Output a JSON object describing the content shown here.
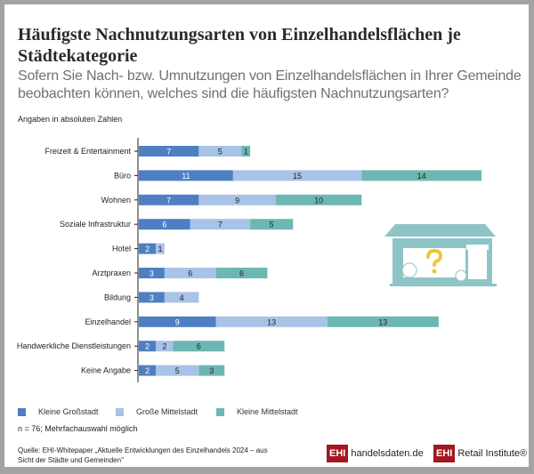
{
  "title": "Häufigste Nachnutzungsarten von Einzelhandelsflächen je Städtekategorie",
  "subtitle": "Sofern Sie Nach- bzw. Umnutzungen von Einzelhandelsflächen in Ihrer Gemeinde beobachten können, welches sind die häufigsten Nachnutzungsarten?",
  "unit_note": "Angaben in absoluten Zahlen",
  "sample_note": "n = 76; Mehrfachauswahl möglich",
  "source": "Quelle: EHI-Whitepaper „Aktuelle Entwicklungen des Einzelhandels 2024 – aus Sicht der Städte und Gemeinden\"",
  "logos": {
    "logo1_mark": "EHI",
    "logo1_text": "handelsdaten.de",
    "logo2_mark": "EHI",
    "logo2_text": "Retail Institute®"
  },
  "chart_data": {
    "type": "bar",
    "orientation": "horizontal",
    "stacked": true,
    "categories": [
      "Freizeit & Entertainment",
      "Büro",
      "Wohnen",
      "Soziale Infrastruktur",
      "Hotel",
      "Arztpraxen",
      "Bildung",
      "Einzelhandel",
      "Handwerkliche Dienstleistungen",
      "Keine Angabe"
    ],
    "series": [
      {
        "name": "Kleine Großstadt",
        "color": "#4e7fc3",
        "values": [
          7,
          11,
          7,
          6,
          2,
          3,
          3,
          9,
          2,
          2
        ]
      },
      {
        "name": "Große Mittelstadt",
        "color": "#a8c3e7",
        "values": [
          5,
          15,
          9,
          7,
          1,
          6,
          4,
          13,
          2,
          5
        ]
      },
      {
        "name": "Kleine Mittelstadt",
        "color": "#6cb7b1",
        "values": [
          1,
          14,
          10,
          5,
          0,
          6,
          0,
          13,
          6,
          3
        ]
      }
    ],
    "legend": "bottom-left",
    "xlim": [
      0,
      40
    ]
  }
}
